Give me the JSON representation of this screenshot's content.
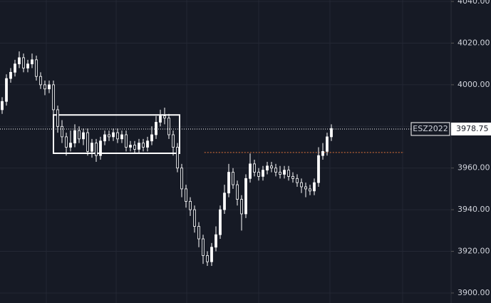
{
  "chart_data": {
    "type": "candlestick",
    "symbol": "ESZ2022",
    "last_price": {
      "value": 3978.75,
      "label": "3978.75"
    },
    "ylim": [
      3895.2,
      4040.7
    ],
    "yticks": [
      {
        "value": 3900,
        "label": "3900.00"
      },
      {
        "value": 3920,
        "label": "3920.00"
      },
      {
        "value": 3940,
        "label": "3940.00"
      },
      {
        "value": 3960,
        "label": "3960.00"
      },
      {
        "value": 3980,
        "label": "3980.00"
      },
      {
        "value": 4000,
        "label": "4000.00"
      },
      {
        "value": 4020,
        "label": "4020.00"
      },
      {
        "value": 4040,
        "label": "4040.00"
      }
    ],
    "grid": true,
    "up_color": "#ffffff",
    "down_color": "#161a25",
    "open": [
      3988,
      3992,
      4003,
      4006,
      4010,
      4013,
      4008,
      4010,
      4012,
      4004,
      4000,
      3998,
      4000,
      3988,
      3980,
      3975,
      3970,
      3972,
      3978,
      3974,
      3977,
      3968,
      3972,
      3966,
      3973,
      3976,
      3975,
      3977,
      3974,
      3976,
      3970,
      3971,
      3969,
      3972,
      3970,
      3973,
      3976,
      3982,
      3985,
      3984,
      3976,
      3970,
      3960,
      3950,
      3944,
      3940,
      3932,
      3926,
      3918,
      3915,
      3922,
      3928,
      3940,
      3948,
      3958,
      3952,
      3945,
      3938,
      3955,
      3962,
      3958,
      3956,
      3959,
      3961,
      3960,
      3958,
      3957,
      3959,
      3956,
      3955,
      3953,
      3951,
      3950,
      3949,
      3953,
      3966,
      3968,
      3975
    ],
    "high": [
      3994,
      4005,
      4008,
      4012,
      4016,
      4015,
      4012,
      4015,
      4014,
      4006,
      4002,
      4002,
      4002,
      3990,
      3983,
      3977,
      3978,
      3981,
      3980,
      3979,
      3979,
      3974,
      3974,
      3975,
      3978,
      3978,
      3979,
      3979,
      3978,
      3978,
      3973,
      3973,
      3974,
      3974,
      3975,
      3980,
      3985,
      3988,
      3989,
      3986,
      3978,
      3972,
      3962,
      3952,
      3946,
      3942,
      3934,
      3928,
      3920,
      3924,
      3932,
      3942,
      3952,
      3962,
      3960,
      3954,
      3947,
      3957,
      3967,
      3964,
      3960,
      3961,
      3963,
      3963,
      3962,
      3961,
      3961,
      3961,
      3958,
      3957,
      3955,
      3953,
      3952,
      3955,
      3970,
      3972,
      3977,
      3981
    ],
    "low": [
      3986,
      3990,
      4001,
      4004,
      4008,
      4006,
      4006,
      4008,
      4002,
      3998,
      3995,
      3996,
      3985,
      3977,
      3972,
      3966,
      3968,
      3970,
      3972,
      3971,
      3966,
      3965,
      3963,
      3964,
      3971,
      3973,
      3973,
      3972,
      3972,
      3968,
      3968,
      3967,
      3967,
      3968,
      3968,
      3971,
      3974,
      3980,
      3981,
      3974,
      3966,
      3958,
      3946,
      3941,
      3937,
      3929,
      3922,
      3914,
      3913,
      3913,
      3920,
      3926,
      3938,
      3946,
      3950,
      3942,
      3930,
      3936,
      3953,
      3956,
      3954,
      3954,
      3957,
      3958,
      3956,
      3955,
      3955,
      3954,
      3953,
      3951,
      3948,
      3946,
      3947,
      3947,
      3951,
      3964,
      3966,
      3973
    ],
    "close": [
      3992,
      4003,
      4006,
      4010,
      4013,
      4008,
      4010,
      4012,
      4004,
      4000,
      3998,
      4000,
      3988,
      3980,
      3975,
      3970,
      3972,
      3978,
      3974,
      3977,
      3968,
      3972,
      3966,
      3973,
      3976,
      3975,
      3977,
      3974,
      3976,
      3970,
      3971,
      3969,
      3972,
      3970,
      3973,
      3976,
      3982,
      3985,
      3984,
      3976,
      3970,
      3960,
      3950,
      3944,
      3940,
      3932,
      3926,
      3918,
      3915,
      3922,
      3928,
      3940,
      3948,
      3958,
      3952,
      3945,
      3938,
      3955,
      3962,
      3958,
      3956,
      3959,
      3961,
      3960,
      3958,
      3957,
      3959,
      3956,
      3955,
      3953,
      3951,
      3950,
      3949,
      3953,
      3966,
      3968,
      3975,
      3979
    ],
    "box": {
      "from": 12,
      "to": 41.5,
      "low": 3967.1,
      "high": 3985.5,
      "color": "#ffffff"
    },
    "level": {
      "value": 3967.5,
      "from": 47.3,
      "to": 94,
      "color": "#e0733a"
    }
  }
}
